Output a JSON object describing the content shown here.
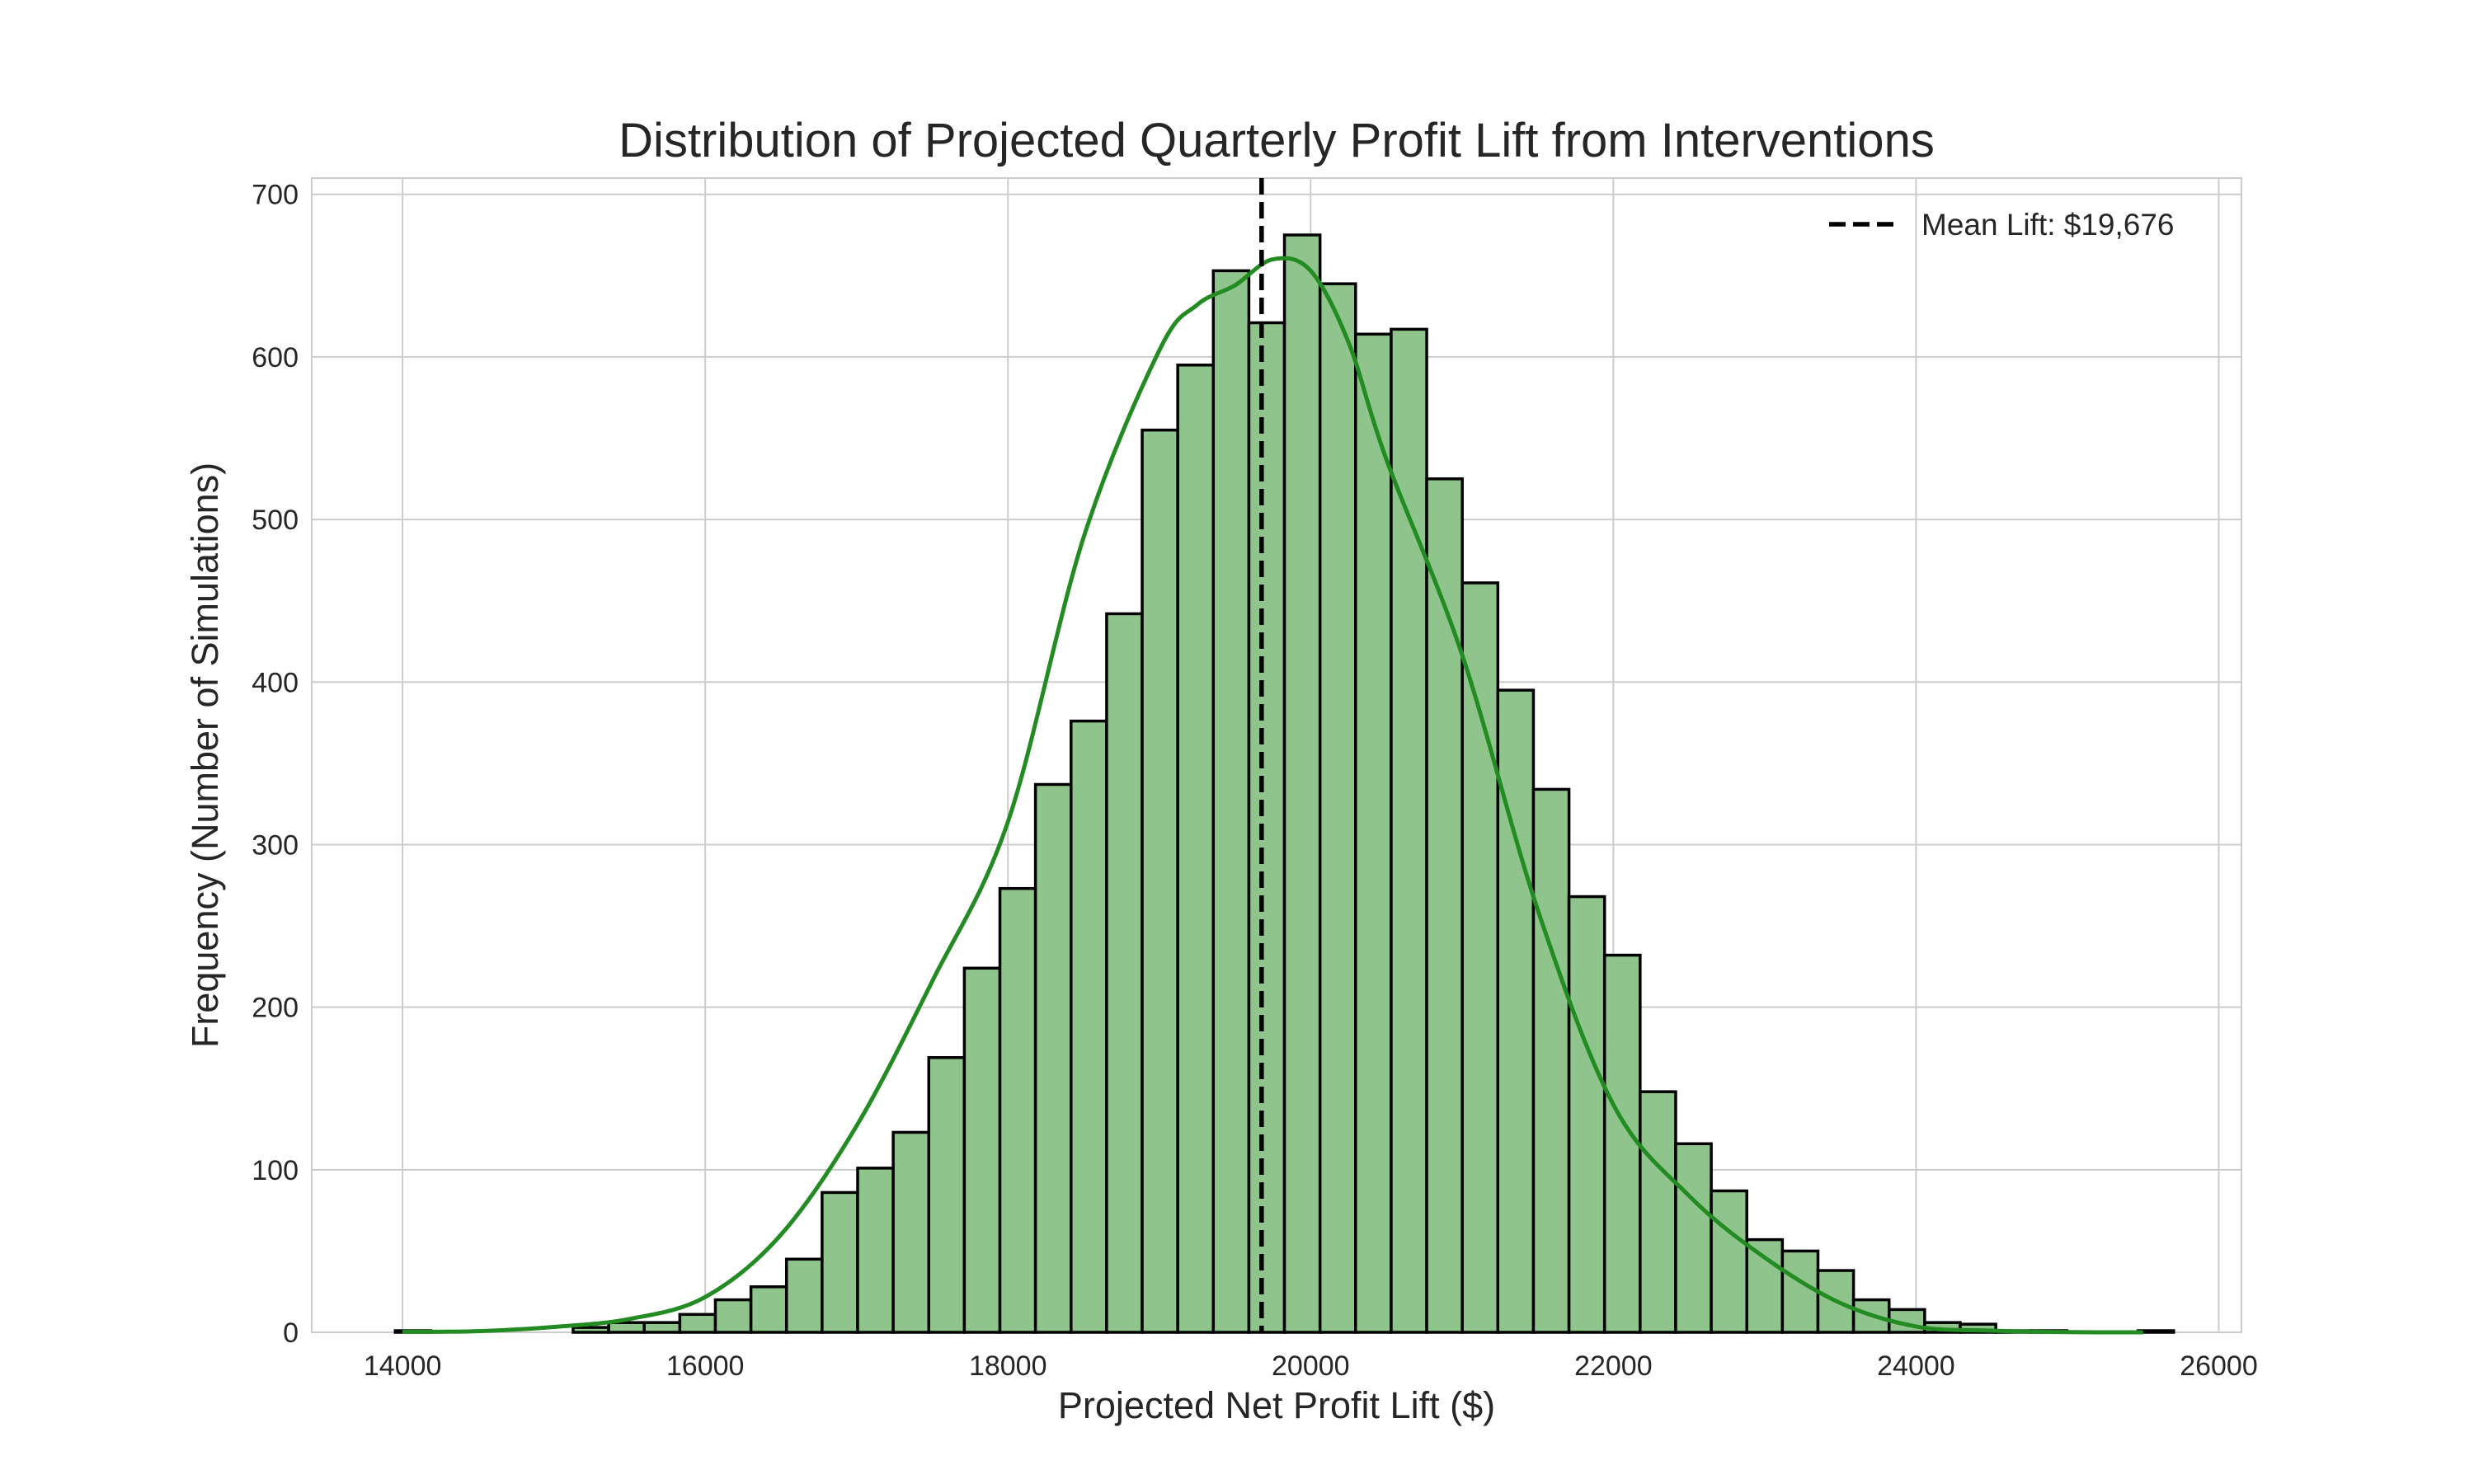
{
  "chart_data": {
    "type": "bar",
    "title": "Distribution of Projected Quarterly Profit Lift from Interventions",
    "xlabel": "Projected Net Profit Lift ($)",
    "ylabel": "Frequency (Number of Simulations)",
    "xlim": [
      13400,
      26150
    ],
    "ylim": [
      0,
      710
    ],
    "x_ticks": [
      14000,
      16000,
      18000,
      20000,
      22000,
      24000,
      26000
    ],
    "y_ticks": [
      0,
      100,
      200,
      300,
      400,
      500,
      600,
      700
    ],
    "grid": true,
    "legend": {
      "position": "top-right",
      "entries": [
        "Mean Lift: $19,676"
      ]
    },
    "mean_line": {
      "value": 19676,
      "label": "Mean Lift: $19,676"
    },
    "bin_edges": [
      13952,
      14187,
      14422,
      14657,
      14892,
      15127,
      15362,
      15597,
      15832,
      16067,
      16302,
      16537,
      16772,
      17007,
      17242,
      17477,
      17712,
      17947,
      18182,
      18417,
      18652,
      18887,
      19122,
      19357,
      19592,
      19827,
      20062,
      20297,
      20532,
      20767,
      21002,
      21237,
      21472,
      21707,
      21942,
      22177,
      22412,
      22647,
      22882,
      23117,
      23352,
      23587,
      23822,
      24057,
      24292,
      24527,
      24762,
      24997,
      25232,
      25467,
      25702
    ],
    "counts": [
      1,
      0,
      0,
      0,
      0,
      3,
      6,
      6,
      11,
      20,
      28,
      45,
      86,
      101,
      123,
      169,
      224,
      273,
      337,
      376,
      442,
      555,
      595,
      653,
      621,
      675,
      645,
      614,
      617,
      525,
      461,
      395,
      334,
      268,
      232,
      148,
      116,
      87,
      57,
      50,
      38,
      20,
      14,
      6,
      5,
      1,
      1,
      0,
      0,
      1
    ],
    "kde": {
      "x": [
        14000,
        14500,
        15000,
        15500,
        16000,
        16500,
        17000,
        17500,
        18000,
        18500,
        19000,
        19250,
        19500,
        19750,
        20000,
        20250,
        20500,
        21000,
        21500,
        22000,
        22500,
        23000,
        23500,
        24000,
        24500,
        25000,
        25500
      ],
      "y": [
        0.3,
        0.7,
        3.3,
        8.2,
        21.7,
        60,
        127,
        216,
        314,
        489,
        604,
        632,
        644,
        660,
        653,
        609,
        537,
        417,
        260,
        140,
        84,
        46,
        18,
        3.6,
        1,
        0.1,
        0
      ]
    },
    "colors": {
      "bar_fill": "#8fc48c",
      "bar_edge": "#000000",
      "kde_line": "#228b22",
      "mean_line": "#000000",
      "grid": "#cccccc"
    }
  }
}
